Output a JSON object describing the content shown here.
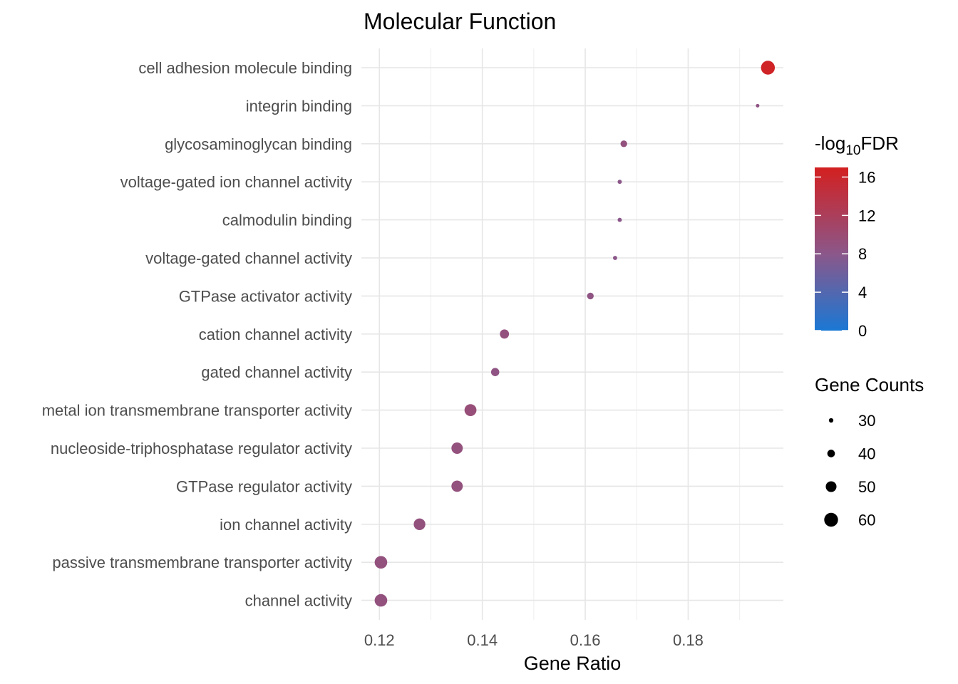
{
  "chart_data": {
    "type": "scatter",
    "title": "Molecular Function",
    "xlabel": "Gene Ratio",
    "ylabel": "",
    "xlim": [
      0.1165,
      0.1985
    ],
    "xticks": [
      "0.12",
      "0.14",
      "0.16",
      "0.18"
    ],
    "xtick_values": [
      0.12,
      0.14,
      0.16,
      0.18
    ],
    "grid": true,
    "categories": [
      "cell adhesion molecule binding",
      "integrin binding",
      "glycosaminoglycan binding",
      "voltage-gated ion channel activity",
      "calmodulin binding",
      "voltage-gated channel activity",
      "GTPase activator activity",
      "cation channel activity",
      "gated channel activity",
      "metal ion transmembrane transporter activity",
      "nucleoside-triphosphatase regulator activity",
      "GTPase regulator activity",
      "ion channel activity",
      "passive transmembrane transporter activity",
      "channel activity"
    ],
    "points": [
      {
        "term": "cell adhesion molecule binding",
        "gene_ratio": 0.1955,
        "neg_log10_fdr": 16.5,
        "gene_count": 60
      },
      {
        "term": "integrin binding",
        "gene_ratio": 0.1935,
        "neg_log10_fdr": 8.5,
        "gene_count": 27
      },
      {
        "term": "glycosaminoglycan binding",
        "gene_ratio": 0.1675,
        "neg_log10_fdr": 9.0,
        "gene_count": 37
      },
      {
        "term": "voltage-gated ion channel activity",
        "gene_ratio": 0.1667,
        "neg_log10_fdr": 8.0,
        "gene_count": 29
      },
      {
        "term": "calmodulin binding",
        "gene_ratio": 0.1667,
        "neg_log10_fdr": 8.0,
        "gene_count": 29
      },
      {
        "term": "voltage-gated channel activity",
        "gene_ratio": 0.1658,
        "neg_log10_fdr": 8.0,
        "gene_count": 29
      },
      {
        "term": "GTPase activator activity",
        "gene_ratio": 0.161,
        "neg_log10_fdr": 8.5,
        "gene_count": 37
      },
      {
        "term": "cation channel activity",
        "gene_ratio": 0.1443,
        "neg_log10_fdr": 9.0,
        "gene_count": 45
      },
      {
        "term": "gated channel activity",
        "gene_ratio": 0.1425,
        "neg_log10_fdr": 8.5,
        "gene_count": 42
      },
      {
        "term": "metal ion transmembrane transporter activity",
        "gene_ratio": 0.1377,
        "neg_log10_fdr": 9.5,
        "gene_count": 54
      },
      {
        "term": "nucleoside-triphosphatase regulator activity",
        "gene_ratio": 0.1351,
        "neg_log10_fdr": 9.0,
        "gene_count": 52
      },
      {
        "term": "GTPase regulator activity",
        "gene_ratio": 0.1351,
        "neg_log10_fdr": 9.0,
        "gene_count": 52
      },
      {
        "term": "ion channel activity",
        "gene_ratio": 0.1278,
        "neg_log10_fdr": 9.0,
        "gene_count": 53
      },
      {
        "term": "passive transmembrane transporter activity",
        "gene_ratio": 0.1203,
        "neg_log10_fdr": 9.0,
        "gene_count": 56
      },
      {
        "term": "channel activity",
        "gene_ratio": 0.1203,
        "neg_log10_fdr": 9.0,
        "gene_count": 56
      }
    ],
    "color_legend": {
      "title_prefix": "-log",
      "title_subscript": "10",
      "title_suffix": "FDR",
      "range": [
        0,
        17
      ],
      "ticks": [
        "0",
        "4",
        "8",
        "12",
        "16"
      ],
      "tick_values": [
        0,
        4,
        8,
        12,
        16
      ],
      "low_color": "#1a78d4",
      "mid_color": "#8b578a",
      "high_color": "#d32020"
    },
    "size_legend": {
      "title": "Gene Counts",
      "labels": [
        "30",
        "40",
        "50",
        "60"
      ],
      "values": [
        30,
        40,
        50,
        60
      ]
    }
  }
}
